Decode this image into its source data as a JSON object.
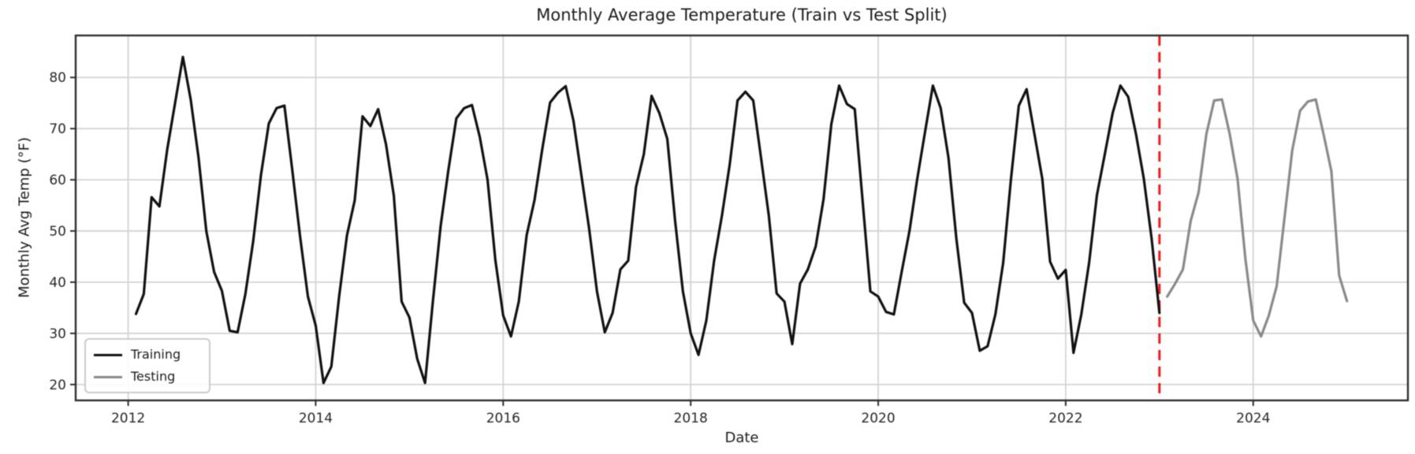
{
  "chart_data": {
    "type": "line",
    "title": "Monthly Average Temperature (Train vs Test Split)",
    "xlabel": "Date",
    "ylabel": "Monthly Avg Temp (°F)",
    "grid": true,
    "xlim": [
      2011.44,
      2025.65
    ],
    "ylim": [
      16.9,
      88.2
    ],
    "x_ticks": [
      2012,
      2014,
      2016,
      2018,
      2020,
      2022,
      2024
    ],
    "y_ticks": [
      20,
      30,
      40,
      50,
      60,
      70,
      80
    ],
    "split_line": {
      "x": 2023.0,
      "color": "#ee1c1c",
      "style": "dashed",
      "meaning": "train/test split"
    },
    "legend": {
      "position": "lower left",
      "entries": [
        {
          "label": "Training",
          "color": "#111111"
        },
        {
          "label": "Testing",
          "color": "#8a8a8a"
        }
      ]
    },
    "series": [
      {
        "name": "Training",
        "color": "#111111",
        "start_year": 2012,
        "start_month": 1,
        "cadence": "monthly",
        "values": [
          33.8,
          37.7,
          56.6,
          54.8,
          66.0,
          75.0,
          84.0,
          75.7,
          64.4,
          50.0,
          42.0,
          38.3,
          30.5,
          30.2,
          37.7,
          48.0,
          61.0,
          71.0,
          74.0,
          74.5,
          62.0,
          49.0,
          37.2,
          31.5,
          20.3,
          23.5,
          37.2,
          49.1,
          56.0,
          72.4,
          70.5,
          73.8,
          66.9,
          56.9,
          36.2,
          33.1,
          25.0,
          20.3,
          36.2,
          51.0,
          62.0,
          72.0,
          74.0,
          74.6,
          68.4,
          60.0,
          44.3,
          33.5,
          29.4,
          36.2,
          49.2,
          56.0,
          66.0,
          75.1,
          77.0,
          78.3,
          71.5,
          61.0,
          50.5,
          38.2,
          30.2,
          34.0,
          42.5,
          44.2,
          58.6,
          65.0,
          76.4,
          73.0,
          68.0,
          52.0,
          38.2,
          30.0,
          25.8,
          32.5,
          44.2,
          53.0,
          63.0,
          75.5,
          77.2,
          75.5,
          64.3,
          53.0,
          37.8,
          36.2,
          27.9,
          39.7,
          42.5,
          47.0,
          56.2,
          70.9,
          78.4,
          74.8,
          73.8,
          56.0,
          38.2,
          37.2,
          34.2,
          33.7,
          42.0,
          50.0,
          60.2,
          69.4,
          78.4,
          74.0,
          64.3,
          48.5,
          36.0,
          34.0,
          26.6,
          27.5,
          33.7,
          43.8,
          60.2,
          74.5,
          77.7,
          68.9,
          60.2,
          44.0,
          40.7,
          42.4,
          26.2,
          33.7,
          43.8,
          57.0,
          65.0,
          73.0,
          78.4,
          76.2,
          68.9,
          60.2,
          48.5,
          34.0
        ]
      },
      {
        "name": "Testing",
        "color": "#8a8a8a",
        "start_year": 2023,
        "start_month": 1,
        "cadence": "monthly",
        "values": [
          37.2,
          39.7,
          42.5,
          52.0,
          57.5,
          68.9,
          75.5,
          75.7,
          68.9,
          60.2,
          44.5,
          32.5,
          29.4,
          33.5,
          39.2,
          52.5,
          65.8,
          73.5,
          75.3,
          75.7,
          68.9,
          61.7,
          41.3,
          36.3
        ]
      }
    ],
    "style": {
      "grid_color": "#d4d4d4",
      "spine_color": "#2f2f2f",
      "tick_label_color": "#262626",
      "background": "#ffffff"
    }
  }
}
